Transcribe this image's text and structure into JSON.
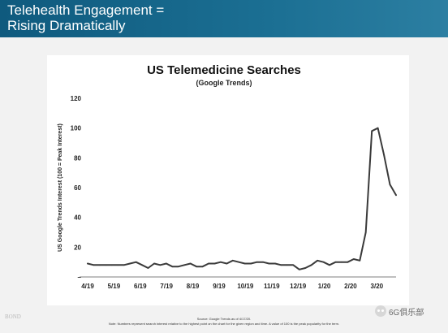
{
  "slide": {
    "title": "Telehealth Engagement =\nRising Dramatically"
  },
  "chart_data": {
    "type": "line",
    "title": "US Telemedicine Searches",
    "subtitle": "(Google Trends)",
    "ylabel": "US Google Trends Interest (100 = Peak Interest)",
    "xlabel": "",
    "ylim": [
      0,
      120
    ],
    "yticks": [
      "–",
      "20",
      "40",
      "60",
      "80",
      "100",
      "120"
    ],
    "xticks": [
      {
        "label": "4/19",
        "x": 0
      },
      {
        "label": "5/19",
        "x": 1
      },
      {
        "label": "6/19",
        "x": 2
      },
      {
        "label": "7/19",
        "x": 3
      },
      {
        "label": "8/19",
        "x": 4
      },
      {
        "label": "9/19",
        "x": 5
      },
      {
        "label": "10/19",
        "x": 6
      },
      {
        "label": "11/19",
        "x": 7
      },
      {
        "label": "12/19",
        "x": 8
      },
      {
        "label": "1/20",
        "x": 9
      },
      {
        "label": "2/20",
        "x": 10
      },
      {
        "label": "3/20",
        "x": 11
      }
    ],
    "grid": false,
    "series": [
      {
        "color": "#3a3a3a",
        "points": [
          [
            0.0,
            9
          ],
          [
            0.23,
            8
          ],
          [
            0.46,
            8
          ],
          [
            0.69,
            8
          ],
          [
            0.92,
            8
          ],
          [
            1.15,
            8
          ],
          [
            1.38,
            8
          ],
          [
            1.61,
            9
          ],
          [
            1.84,
            10
          ],
          [
            2.07,
            8
          ],
          [
            2.3,
            6
          ],
          [
            2.53,
            9
          ],
          [
            2.76,
            8
          ],
          [
            2.99,
            9
          ],
          [
            3.22,
            7
          ],
          [
            3.45,
            7
          ],
          [
            3.68,
            8
          ],
          [
            3.91,
            9
          ],
          [
            4.14,
            7
          ],
          [
            4.37,
            7
          ],
          [
            4.6,
            9
          ],
          [
            4.83,
            9
          ],
          [
            5.06,
            10
          ],
          [
            5.29,
            9
          ],
          [
            5.52,
            11
          ],
          [
            5.75,
            10
          ],
          [
            5.98,
            9
          ],
          [
            6.21,
            9
          ],
          [
            6.44,
            10
          ],
          [
            6.67,
            10
          ],
          [
            6.9,
            9
          ],
          [
            7.13,
            9
          ],
          [
            7.36,
            8
          ],
          [
            7.59,
            8
          ],
          [
            7.82,
            8
          ],
          [
            8.05,
            5
          ],
          [
            8.28,
            6
          ],
          [
            8.51,
            8
          ],
          [
            8.74,
            11
          ],
          [
            8.97,
            10
          ],
          [
            9.2,
            8
          ],
          [
            9.43,
            10
          ],
          [
            9.66,
            10
          ],
          [
            9.89,
            10
          ],
          [
            10.12,
            12
          ],
          [
            10.35,
            11
          ],
          [
            10.58,
            30
          ],
          [
            10.81,
            98
          ],
          [
            11.04,
            100
          ],
          [
            11.27,
            82
          ],
          [
            11.5,
            62
          ],
          [
            11.73,
            55
          ]
        ]
      }
    ]
  },
  "footer": {
    "logo": "BOND",
    "source": "Source: Google Trends as of 4/17/20.",
    "note": "Note: Numbers represent search interest relative to the highest point on the chart for the given region and time. A value of 100 is the peak popularity for the term."
  },
  "watermark": {
    "text": "6G俱乐部",
    "icon": "wechat-icon"
  }
}
